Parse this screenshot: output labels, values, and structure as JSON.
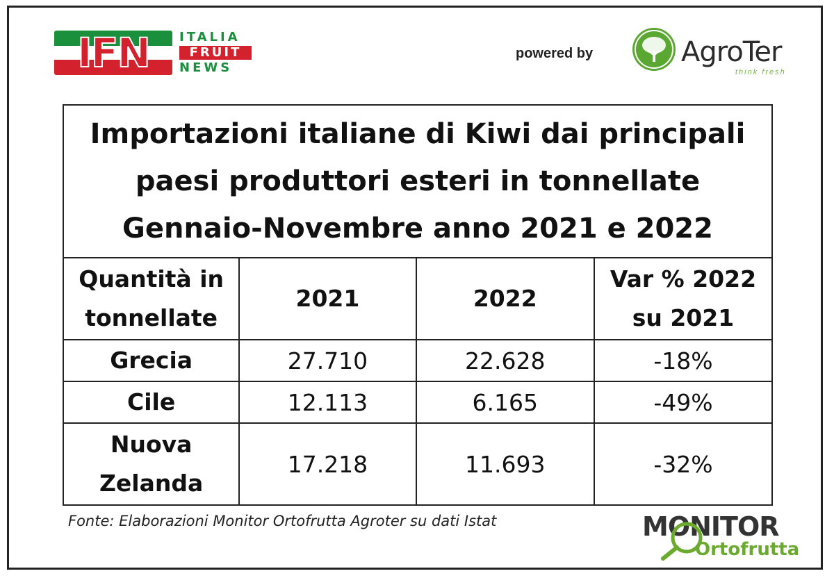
{
  "logos": {
    "ifn": {
      "mark": "IFN",
      "line1": "ITALIA",
      "line2": "FRUIT",
      "line3": "NEWS"
    },
    "powered_by": "powered by",
    "agroter": {
      "name": "AgroTer",
      "tagline": "think fresh"
    },
    "monitor": {
      "top": "MONITOR",
      "bottom": "Ortofrutta"
    }
  },
  "table": {
    "title_lines": [
      "Importazioni italiane di Kiwi dai principali",
      "paesi produttori esteri in tonnellate",
      "Gennaio-Novembre anno 2021 e 2022"
    ],
    "headers": {
      "col1_line1": "Quantità in",
      "col1_line2": "tonnellate",
      "col2": "2021",
      "col3": "2022",
      "col4_line1": "Var % 2022",
      "col4_line2": "su 2021"
    },
    "rows": [
      {
        "country_line1": "Grecia",
        "country_line2": "",
        "y2021": "27.710",
        "y2022": "22.628",
        "var": "-18%"
      },
      {
        "country_line1": "Cile",
        "country_line2": "",
        "y2021": "12.113",
        "y2022": "6.165",
        "var": "-49%"
      },
      {
        "country_line1": "Nuova",
        "country_line2": "Zelanda",
        "y2021": "17.218",
        "y2022": "11.693",
        "var": "-32%"
      }
    ]
  },
  "source": "Fonte: Elaborazioni Monitor Ortofrutta Agroter su dati Istat",
  "colors": {
    "ifn_green": "#1a8f3c",
    "ifn_red": "#d3212d",
    "agroter_green": "#5aa832",
    "monitor_green": "#6aaa2e"
  }
}
